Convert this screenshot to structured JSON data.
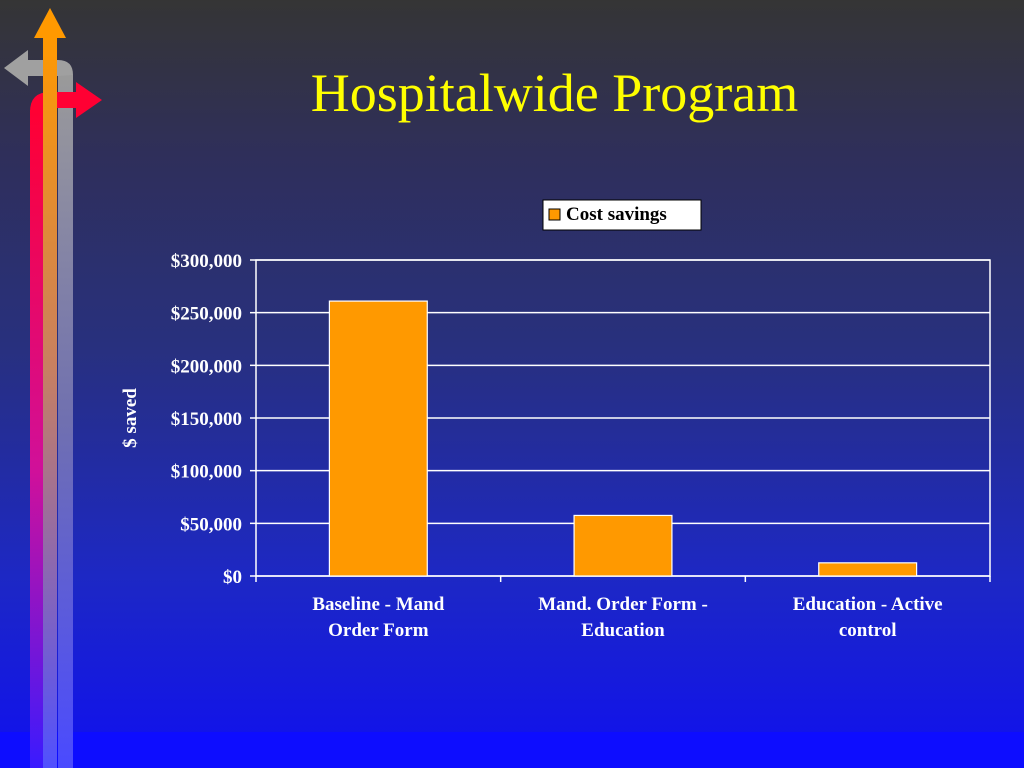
{
  "slide": {
    "title": "Hospitalwide Program"
  },
  "colors": {
    "title": "#ffff00",
    "bar": "#ff9900",
    "arrow_orange": "#ff9900",
    "arrow_gray": "#a0a0a0",
    "arrow_red": "#ff0033"
  },
  "decorations": {
    "left_arrows": [
      "arrow-up-icon",
      "arrow-left-icon",
      "arrow-right-icon"
    ]
  },
  "chart_data": {
    "type": "bar",
    "title": "",
    "xlabel": "",
    "ylabel": "$ saved",
    "categories": [
      [
        "Baseline - Mand",
        "Order Form"
      ],
      [
        "Mand. Order Form -",
        "Education"
      ],
      [
        "Education - Active",
        "control"
      ]
    ],
    "series": [
      {
        "name": "Cost savings",
        "values": [
          261000,
          57500,
          12500
        ]
      }
    ],
    "ylim": [
      0,
      300000
    ],
    "yticks": [
      0,
      50000,
      100000,
      150000,
      200000,
      250000,
      300000
    ],
    "ytick_labels": [
      "$0",
      "$50,000",
      "$100,000",
      "$150,000",
      "$200,000",
      "$250,000",
      "$300,000"
    ],
    "grid": true,
    "legend_position": "top"
  }
}
